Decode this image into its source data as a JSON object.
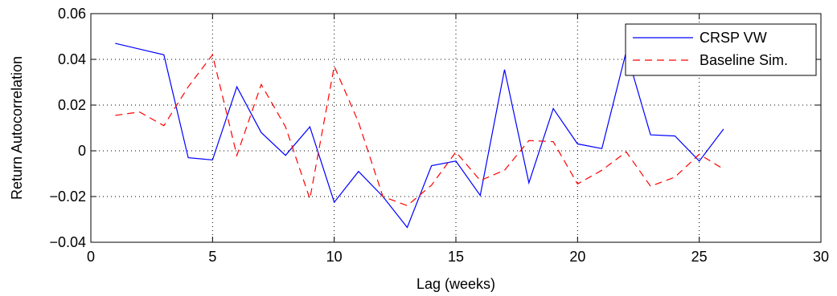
{
  "chart_data": {
    "type": "line",
    "xlabel": "Lag (weeks)",
    "ylabel": "Return Autocorrelation",
    "xlim": [
      0,
      30
    ],
    "ylim": [
      -0.04,
      0.06
    ],
    "xticks": [
      0,
      5,
      10,
      15,
      20,
      25,
      30
    ],
    "xtick_labels": [
      "0",
      "5",
      "10",
      "15",
      "20",
      "25",
      "30"
    ],
    "yticks": [
      -0.04,
      -0.02,
      0,
      0.02,
      0.04,
      0.06
    ],
    "ytick_labels": [
      "−0.04",
      "−0.02",
      "0",
      "0.02",
      "0.04",
      "0.06"
    ],
    "grid": true,
    "legend_position": "top-right",
    "series": [
      {
        "name": "CRSP VW",
        "color": "#0000ff",
        "style": "solid",
        "x": [
          1,
          2,
          3,
          4,
          5,
          6,
          7,
          8,
          9,
          10,
          11,
          12,
          13,
          14,
          15,
          16,
          17,
          18,
          19,
          20,
          21,
          22,
          23,
          24,
          25,
          26
        ],
        "values": [
          0.047,
          0.0445,
          0.042,
          -0.003,
          -0.004,
          0.028,
          0.008,
          -0.002,
          0.0105,
          -0.0225,
          -0.009,
          -0.02,
          -0.0335,
          -0.0065,
          -0.0045,
          -0.0195,
          0.0355,
          -0.014,
          0.0185,
          0.003,
          0.001,
          0.0435,
          0.007,
          0.0065,
          -0.0045,
          0.0095
        ]
      },
      {
        "name": "Baseline Sim.",
        "color": "#ff0000",
        "style": "dashed",
        "x": [
          1,
          2,
          3,
          4,
          5,
          6,
          7,
          8,
          9,
          10,
          11,
          12,
          13,
          14,
          15,
          16,
          17,
          18,
          19,
          20,
          21,
          22,
          23,
          24,
          25,
          26
        ],
        "values": [
          0.0155,
          0.017,
          0.011,
          0.028,
          0.042,
          -0.002,
          0.029,
          0.0105,
          -0.021,
          0.037,
          0.0125,
          -0.02,
          -0.024,
          -0.015,
          -0.0005,
          -0.013,
          -0.0085,
          0.0045,
          0.004,
          -0.0145,
          -0.0085,
          -0.0005,
          -0.0155,
          -0.0115,
          -0.0015,
          -0.008
        ]
      }
    ]
  }
}
